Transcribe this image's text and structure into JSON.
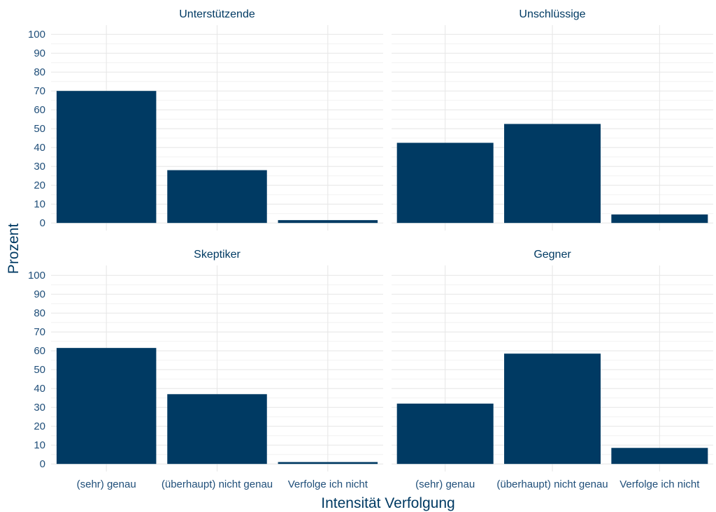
{
  "colors": {
    "bar": "#003A63",
    "text": "#003A63",
    "tick_text": "#1F4E79",
    "grid_major": "#E6E6E6",
    "grid_minor": "#F2F2F2",
    "background": "#FFFFFF"
  },
  "chart_data": {
    "type": "bar",
    "layout": "facet-grid-2x2",
    "xlabel": "Intensität Verfolgung",
    "ylabel": "Prozent",
    "ylim": [
      0,
      105
    ],
    "yticks": [
      0,
      10,
      20,
      30,
      40,
      50,
      60,
      70,
      80,
      90,
      100
    ],
    "grid": true,
    "categories": [
      "(sehr) genau",
      "(überhaupt) nicht genau",
      "Verfolge ich nicht"
    ],
    "panels": [
      {
        "title": "Unterstützende",
        "values": [
          70,
          28,
          1.5
        ]
      },
      {
        "title": "Unschlüssige",
        "values": [
          42.5,
          52.5,
          4.5
        ]
      },
      {
        "title": "Skeptiker",
        "values": [
          61.5,
          37,
          1
        ]
      },
      {
        "title": "Gegner",
        "values": [
          32,
          58.5,
          8.5
        ]
      }
    ]
  }
}
